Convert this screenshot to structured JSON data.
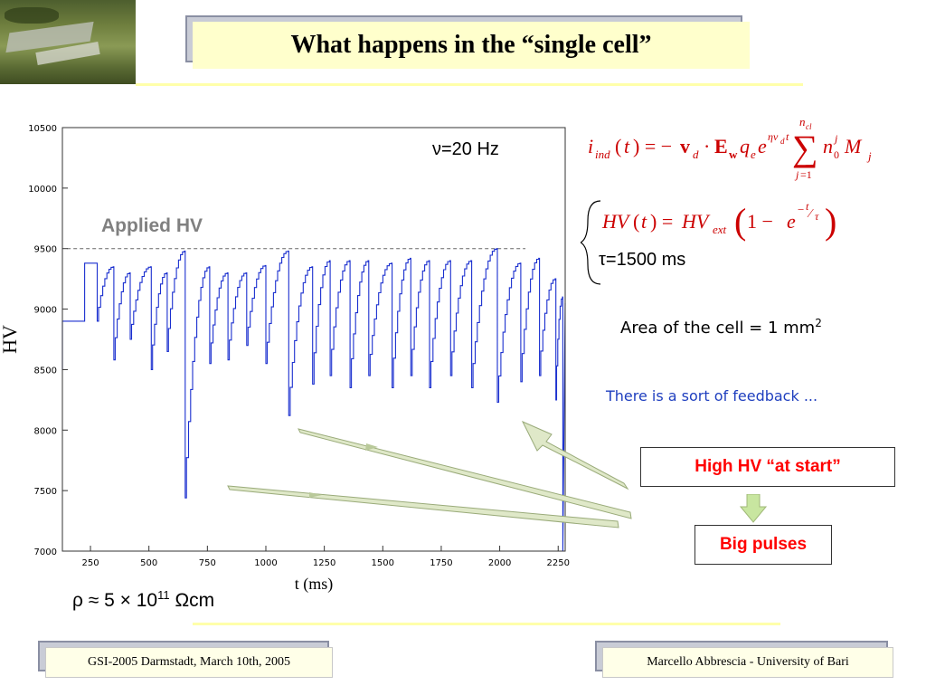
{
  "header": {
    "title": "What happens in the “single cell”"
  },
  "chart_data": {
    "type": "line",
    "xlabel": "t (ms)",
    "ylabel": "HV",
    "xlim": [
      130,
      2280
    ],
    "ylim": [
      7000,
      10500
    ],
    "x_ticks": [
      250,
      500,
      750,
      1000,
      1250,
      1500,
      1750,
      2000,
      2250
    ],
    "y_ticks": [
      7000,
      7500,
      8000,
      8500,
      9000,
      9500,
      10000,
      10500
    ],
    "x_tick_labels": [
      "250",
      "500",
      "750",
      "1000",
      "1250",
      "1500",
      "1750",
      "2000",
      "2250"
    ],
    "y_tick_labels": [
      "7000",
      "7500",
      "8000",
      "8500",
      "9000",
      "9500",
      "10000",
      "10500"
    ],
    "applied_hv": 9500,
    "applied_hv_label": "Applied HV",
    "series": [
      {
        "color": "#1a2fcf",
        "drops": [
          [
            130,
            8500,
            8900
          ],
          [
            225,
            8900,
            9380
          ],
          [
            279,
            9380,
            8900
          ],
          [
            350,
            9350,
            8580
          ],
          [
            420,
            9300,
            8750
          ],
          [
            510,
            9350,
            8500
          ],
          [
            578,
            9300,
            8650
          ],
          [
            655,
            9480,
            7440
          ],
          [
            760,
            9350,
            8550
          ],
          [
            838,
            9300,
            8580
          ],
          [
            918,
            9300,
            8700
          ],
          [
            1000,
            9360,
            8550
          ],
          [
            1098,
            9480,
            8120
          ],
          [
            1200,
            9350,
            8380
          ],
          [
            1275,
            9400,
            8450
          ],
          [
            1360,
            9400,
            8350
          ],
          [
            1440,
            9400,
            8450
          ],
          [
            1540,
            9380,
            8350
          ],
          [
            1620,
            9420,
            8450
          ],
          [
            1700,
            9400,
            8350
          ],
          [
            1790,
            9400,
            8450
          ],
          [
            1880,
            9400,
            8350
          ],
          [
            1990,
            9500,
            8230
          ],
          [
            2090,
            9380,
            8400
          ],
          [
            2170,
            9420,
            8450
          ],
          [
            2240,
            9250,
            8250
          ],
          [
            2270,
            9100,
            7000
          ]
        ],
        "end_t": 2280,
        "end_v": 9050
      }
    ]
  },
  "annotations": {
    "frequency": "ν=20 Hz",
    "rho_prefix": "ρ ≈ 5 × 10",
    "rho_exp": "11",
    "rho_unit": " Ωcm",
    "tau": "τ=1500 ms",
    "area_text": "Area of the cell = 1 mm",
    "area_exp": "2",
    "feedback": "There is a sort of feedback ...",
    "high_hv": "High HV “at start”",
    "big_pulses": "Big pulses"
  },
  "footer": {
    "left": "GSI-2005 Darmstadt, March 10th, 2005",
    "right": "Marcello Abbrescia - University of Bari"
  },
  "colors": {
    "title_bg": "#ffffcc",
    "trace": "#1a2fcf",
    "red": "#ff0000",
    "blue_text": "#1f3fbf",
    "arrow": "#c8d8a0"
  }
}
